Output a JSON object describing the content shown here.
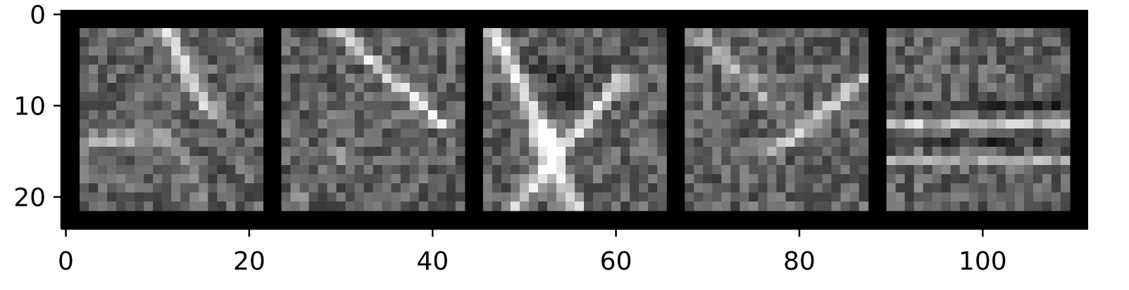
{
  "chart_data": {
    "type": "heatmap",
    "title": "",
    "xlabel": "",
    "ylabel": "",
    "xlim": [
      -0.5,
      111.5
    ],
    "ylim": [
      23.5,
      -0.5
    ],
    "x_ticks": [
      0,
      20,
      40,
      60,
      80,
      100
    ],
    "x_tick_labels": [
      "0",
      "20",
      "40",
      "60",
      "80",
      "100"
    ],
    "y_ticks": [
      0,
      10,
      20
    ],
    "y_tick_labels": [
      "0",
      "10",
      "20"
    ],
    "grid": false,
    "legend": "none",
    "colormap": "gray",
    "background_color": "#000000",
    "tiles": [
      {
        "x_start": 2,
        "y_start": 2,
        "size": 20,
        "pattern": "noise with diagonal bright streaks upper right and horizontal band near row 12"
      },
      {
        "x_start": 24,
        "y_start": 2,
        "size": 20,
        "pattern": "noise with bright diagonal streak from upper middle toward row 9"
      },
      {
        "x_start": 46,
        "y_start": 2,
        "size": 20,
        "pattern": "bright X-shaped crossing near row 14 with high contrast"
      },
      {
        "x_start": 68,
        "y_start": 2,
        "size": 20,
        "pattern": "noise with bright diagonal rising to upper right"
      },
      {
        "x_start": 90,
        "y_start": 2,
        "size": 20,
        "pattern": "horizontal bright bands near rows 12 and 16"
      }
    ]
  }
}
